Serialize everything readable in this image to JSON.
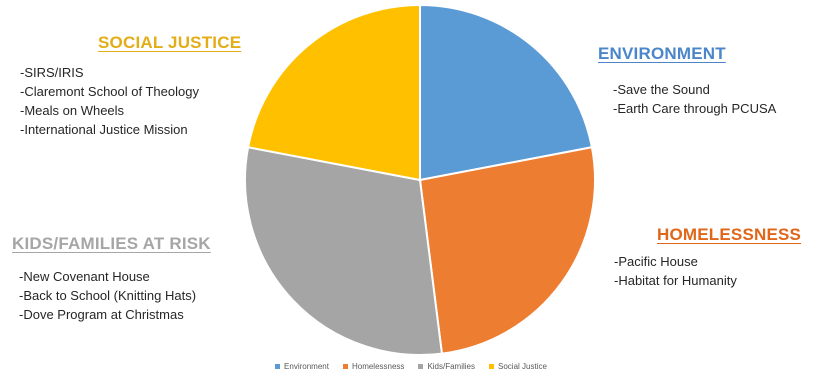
{
  "chart_data": {
    "type": "pie",
    "title": "",
    "categories": [
      "Environment",
      "Homelessness",
      "Kids/Families",
      "Social Justice"
    ],
    "values": [
      22,
      26,
      30,
      22
    ],
    "colors": [
      "#5b9bd5",
      "#ed7d31",
      "#a5a5a5",
      "#ffc000"
    ],
    "legend_position": "bottom"
  },
  "callouts": {
    "social_justice": {
      "heading": "SOCIAL JUSTICE",
      "color": "#e3ad17",
      "items": [
        "-SIRS/IRIS",
        "-Claremont School of Theology",
        "-Meals on Wheels",
        "-International Justice Mission"
      ]
    },
    "environment": {
      "heading": "ENVIRONMENT",
      "color": "#4a86c9",
      "items": [
        "-Save the Sound",
        "-Earth Care through PCUSA"
      ]
    },
    "homelessness": {
      "heading": "HOMELESSNESS",
      "color": "#e0661a",
      "items": [
        "-Pacific House",
        "-Habitat for Humanity"
      ]
    },
    "kids_families": {
      "heading": "KIDS/FAMILIES AT RISK",
      "color": "#a6a6a6",
      "items": [
        "-New Covenant House",
        "-Back to School (Knitting Hats)",
        "-Dove Program at Christmas"
      ]
    }
  }
}
